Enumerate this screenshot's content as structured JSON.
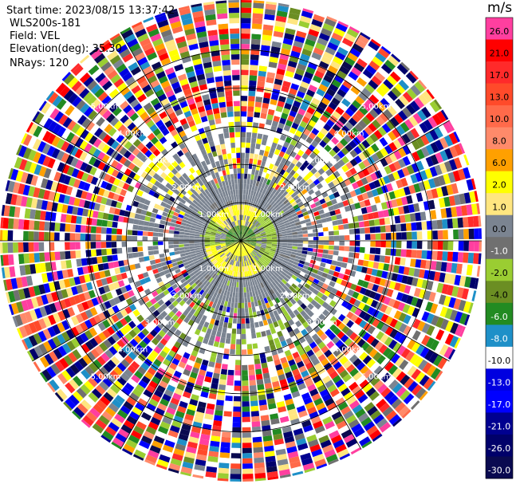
{
  "header": {
    "start_time": "Start time: 2023/08/15 13:37:42",
    "instrument": "WLS200s-181",
    "field": "Field: VEL",
    "elevation": "Elevation(deg): 35.30",
    "nrays": "NRays: 120"
  },
  "colorbar": {
    "unit": "m/s",
    "levels": [
      {
        "label": "26.0",
        "color": "#ff3f9f",
        "text_color": "#000000"
      },
      {
        "label": "21.0",
        "color": "#ff0000",
        "text_color": "#000000"
      },
      {
        "label": "17.0",
        "color": "#ff2a2a",
        "text_color": "#000000"
      },
      {
        "label": "13.0",
        "color": "#ff4a2a",
        "text_color": "#000000"
      },
      {
        "label": "10.0",
        "color": "#ff6a4a",
        "text_color": "#000000"
      },
      {
        "label": "8.0",
        "color": "#ff8a6a",
        "text_color": "#000000"
      },
      {
        "label": "6.0",
        "color": "#ffa000",
        "text_color": "#000000"
      },
      {
        "label": "2.0",
        "color": "#ffff00",
        "text_color": "#000000"
      },
      {
        "label": "1.0",
        "color": "#ffe680",
        "text_color": "#000000"
      },
      {
        "label": "0.0",
        "color": "#7b8491",
        "text_color": "#000000"
      },
      {
        "label": "-1.0",
        "color": "#707070",
        "text_color": "#ffffff"
      },
      {
        "label": "-2.0",
        "color": "#9acd32",
        "text_color": "#000000"
      },
      {
        "label": "-4.0",
        "color": "#6b8e23",
        "text_color": "#000000"
      },
      {
        "label": "-6.0",
        "color": "#228b22",
        "text_color": "#ffffff"
      },
      {
        "label": "-8.0",
        "color": "#1e90c8",
        "text_color": "#ffffff"
      },
      {
        "label": "-10.0",
        "color": "#ffffff",
        "text_color": "#000000"
      },
      {
        "label": "-13.0",
        "color": "#0000e0",
        "text_color": "#ffffff"
      },
      {
        "label": "-17.0",
        "color": "#0000ff",
        "text_color": "#ffffff"
      },
      {
        "label": "-21.0",
        "color": "#000090",
        "text_color": "#ffffff"
      },
      {
        "label": "-26.0",
        "color": "#00006a",
        "text_color": "#ffffff"
      },
      {
        "label": "-30.0",
        "color": "#0a0a50",
        "text_color": "#ffffff"
      }
    ]
  },
  "chart_data": {
    "type": "heatmap",
    "subtype": "radar-ppi",
    "field": "VEL",
    "unit": "m/s",
    "nrays": 120,
    "range_rings": [
      {
        "label": "1.00km",
        "range_km": 1.0
      },
      {
        "label": "2.00km",
        "range_km": 2.0
      },
      {
        "label": "3.00km",
        "range_km": 3.0
      },
      {
        "label": "4.00km",
        "range_km": 4.0
      },
      {
        "label": "5.00km",
        "range_km": 5.0
      }
    ],
    "max_range_km": 6.3,
    "spokes_deg": [
      0,
      30,
      60,
      90,
      120,
      150,
      180,
      210,
      240,
      270,
      300,
      330
    ],
    "color_scale": [
      26.0,
      21.0,
      17.0,
      13.0,
      10.0,
      8.0,
      6.0,
      2.0,
      1.0,
      0.0,
      -1.0,
      -2.0,
      -4.0,
      -6.0,
      -8.0,
      -10.0,
      -13.0,
      -17.0,
      -21.0,
      -26.0,
      -30.0
    ],
    "pattern": {
      "noise_beyond_km": 3.25,
      "clean_core_km": 1.6,
      "near_center_km": 0.35
    }
  }
}
